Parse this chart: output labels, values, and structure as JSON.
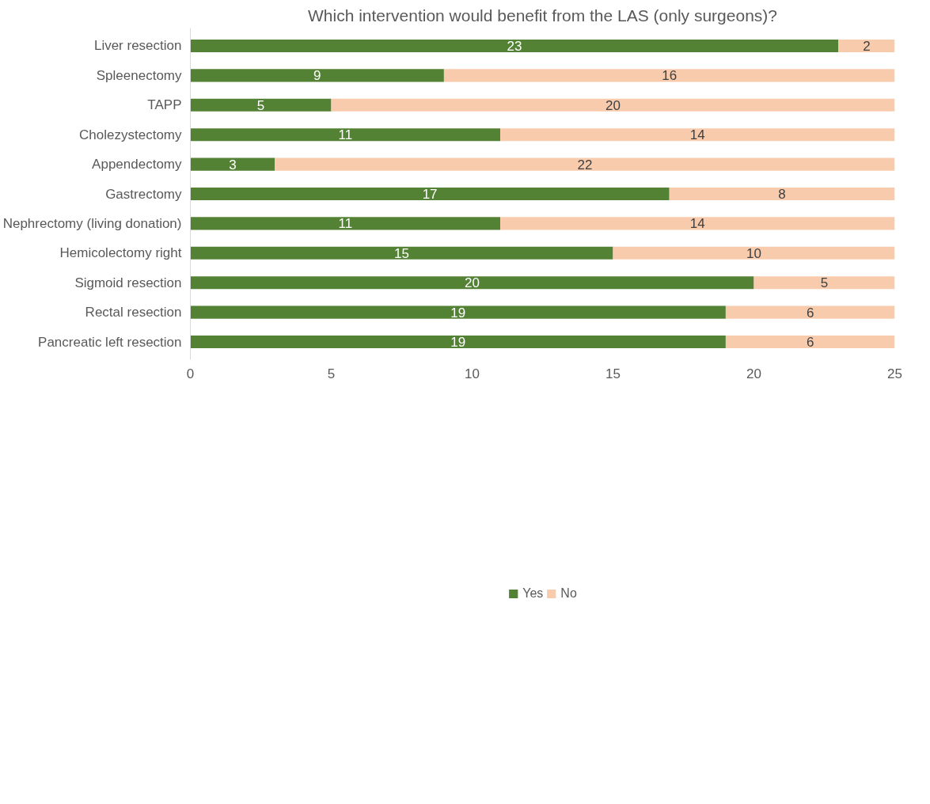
{
  "chart_data": {
    "type": "bar",
    "orientation": "horizontal",
    "stacked": true,
    "title": "Which intervention would benefit from the LAS (only surgeons)?",
    "categories": [
      "Liver resection",
      "Spleenectomy",
      "TAPP",
      "Cholezystectomy",
      "Appendectomy",
      "Gastrectomy",
      "Nephrectomy (living donation)",
      "Hemicolectomy right",
      "Sigmoid resection",
      "Rectal resection",
      "Pancreatic left resection"
    ],
    "series": [
      {
        "name": "Yes",
        "color": "#548235",
        "values": [
          23,
          9,
          5,
          11,
          3,
          17,
          11,
          15,
          20,
          19,
          19
        ]
      },
      {
        "name": "No",
        "color": "#f8cbad",
        "values": [
          2,
          16,
          20,
          14,
          22,
          8,
          14,
          10,
          5,
          6,
          6
        ]
      }
    ],
    "xlim": [
      0,
      25
    ],
    "xticks": [
      0,
      5,
      10,
      15,
      20,
      25
    ],
    "grid": false,
    "legend": "bottom",
    "data_labels": true
  }
}
